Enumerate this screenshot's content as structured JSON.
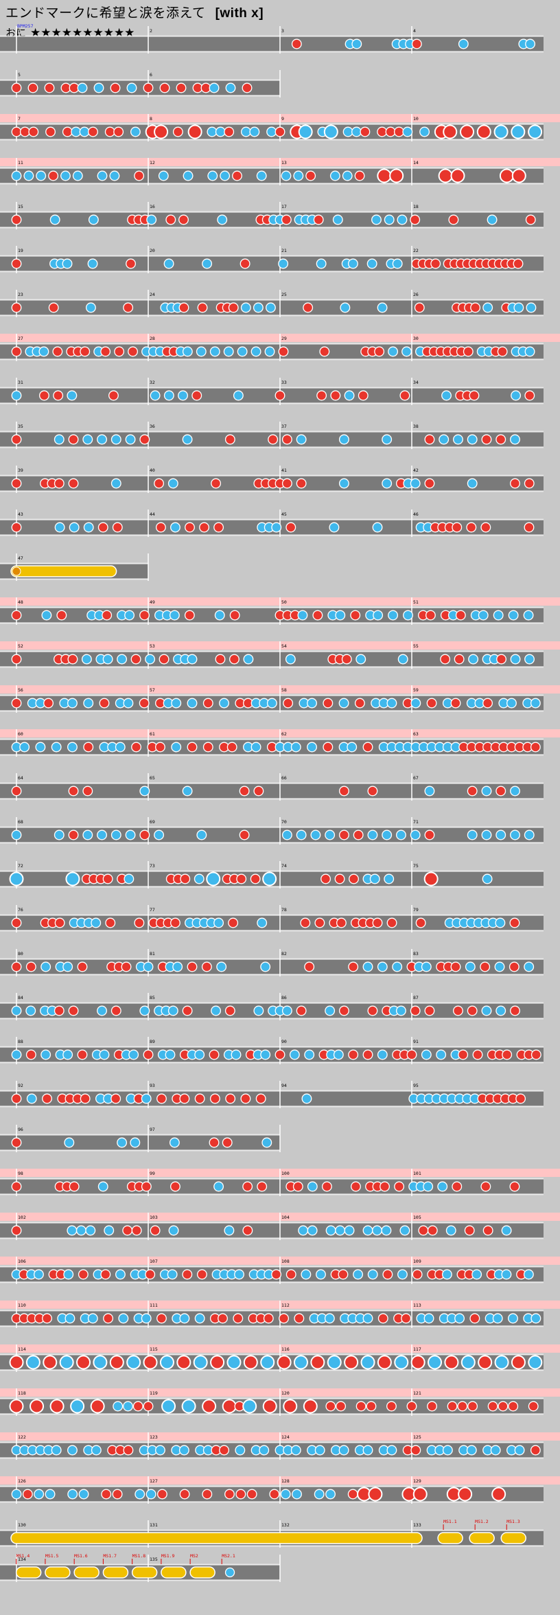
{
  "song": {
    "title": "エンドマークに希望と涙を添えて",
    "suffix": "[with x]",
    "difficulty": "おに",
    "stars": "★★★★★★★★★★",
    "star_count": 10
  },
  "bpm_label": "BPM257",
  "legend": {
    "don": "#e8352c",
    "ka": "#40b8ec",
    "roll": "#f0c000",
    "gogo_band": "#ffc4c4",
    "lane": "#7a7a7a"
  },
  "rows": [
    {
      "gogo": false,
      "bars": [
        1,
        2,
        3,
        4
      ],
      "notes": "..........................................d.......kk.....kkkd......k........kk."
    },
    {
      "gogo": false,
      "bars": [
        5,
        6
      ],
      "notes": "d.d.d.ddk.k.d.k.d.d.d.ddk.k.d..."
    },
    {
      "gogo": true,
      "bars": [
        7,
        8,
        9,
        10
      ],
      "notes": "ddd.d.dkkd.dd.k.DD.d.D.kkd.kk.kd.DK.kK.kkd.dddk.k.DD.D.D.K.K.K"
    },
    {
      "gogo": true,
      "bars": [
        11,
        12,
        13,
        14
      ],
      "notes": "kkkdkk.kk.d.k.k.kkd.k.kkd.kkd.DD...DD...DD."
    },
    {
      "gogo": false,
      "bars": [
        15,
        16,
        17,
        18
      ],
      "notes": "d.....k.....k.....dddk..d.d.....k.....ddkkd.kkkd..k.....k.k.k.d.....d.....k.....d."
    },
    {
      "gogo": false,
      "bars": [
        19,
        20,
        21,
        22
      ],
      "notes": "d.....kkk...k.....d.....k.....k.....d.....k.....k...kk..k..kk..dddd.dddddddddddd..."
    },
    {
      "gogo": false,
      "bars": [
        23,
        24,
        25,
        26
      ],
      "notes": "d.....d.....k.....d.....kkkd..d..ddd.k.k.k.....d.....k.....k.....d.....dddd.k..dkk.k."
    },
    {
      "gogo": true,
      "bars": [
        27,
        28,
        29,
        30
      ],
      "notes": "d.kkk.d.ddd.kd.d.d.kkkddkk.k.k.k.k.k.k.d.....d.....ddd.k.k.kddddddd.kkdd.kkk."
    },
    {
      "gogo": false,
      "bars": [
        31,
        32,
        33,
        34
      ],
      "notes": "k...d.d.k.....d.....k.k.k.d.....k.....d.....d.d.k.d.....d.....k.ddd.....k.d."
    },
    {
      "gogo": false,
      "bars": [
        35,
        36,
        37,
        38
      ],
      "notes": "d.....k.d.k.k.k.k.d.....k.....d.....d.d.k.....k.....k.....d.k.k.k.d.d.k..."
    },
    {
      "gogo": false,
      "bars": [
        39,
        40,
        41,
        42
      ],
      "notes": "d...ddd.d.....k.....d.k.....d.....ddddd.d.....k.....k.dkk.d.....k.....d.d."
    },
    {
      "gogo": false,
      "bars": [
        43,
        44,
        45,
        46
      ],
      "notes": "d.....k.k.k.d.d.....d.k.d.d.d.....kkk.d.....k.....k.....kkdddd.d.d.....d."
    },
    {
      "gogo": false,
      "bars": [
        47
      ],
      "roll_from": 0.0,
      "roll_to": 0.8
    },
    {
      "gogo": true,
      "bars": [
        48,
        49,
        50,
        51
      ],
      "notes": "d...k.d...kkd.kk.d.kkk.d...k.d.....dddk.d.kk.d.kk.k.k.dd.dkd.kk.k.k.k."
    },
    {
      "gogo": true,
      "bars": [
        52,
        53,
        54,
        55
      ],
      "notes": "d.....ddd.k.kk.k.d.k.d.kkk...d.d.k.....k.....ddd.k.....k.....d.d.k.kkd.k.k."
    },
    {
      "gogo": true,
      "bars": [
        56,
        57,
        58,
        59
      ],
      "notes": "d.kkd.kk.k.d.kk.d.dkk.k.d.k.ddkkk.d.kk.d.k.d.kkk.dk.d.kd.kkd.kk.kk"
    },
    {
      "gogo": true,
      "bars": [
        60,
        61,
        62,
        63
      ],
      "notes": "kk.k.k.k.d.kkk.d.dd.k.d.d.dd.kk.dkkk.k.d.kk.d.kkkkkkkkkkdddddddddd"
    },
    {
      "gogo": false,
      "bars": [
        64,
        65,
        66,
        67
      ],
      "notes": "d.......d.d.......k.....k.......d.d...........d...d.......k.....d.k.d.k..."
    },
    {
      "gogo": false,
      "bars": [
        68,
        69,
        70,
        71
      ],
      "notes": "k.....k.d.k.k.k.k.d.k.....k.....d.....k.k.k.k.d.d.k.k.k.k.d.....k.k.k.k.k."
    },
    {
      "gogo": false,
      "bars": [
        72,
        73,
        74,
        75
      ],
      "notes": "K.......K.dddd.dk.....ddd.k.K.ddd.d.K.......d.d.d.kk.k.....D.......k......."
    },
    {
      "gogo": false,
      "bars": [
        76,
        77,
        78,
        79
      ],
      "notes": "d...ddd.kkkk.d...d.dddd.kkkkk.d...k.....d.d.dd.dddd.d...d...kkkkkkkk.d..."
    },
    {
      "gogo": false,
      "bars": [
        80,
        81,
        82,
        83
      ],
      "notes": "d.d.k.kk.d...ddd.kk.dkk.d.d.k.....k.....d.....d.k.k.k.dkk.ddd.k.d.k.d.k."
    },
    {
      "gogo": false,
      "bars": [
        84,
        85,
        86,
        87
      ],
      "notes": "k.k.kkd.d...k.d...k.kkk.d...k.d...k.kkk.d...k.d...d.dkk.d.d...d.d.k.k.d..."
    },
    {
      "gogo": false,
      "bars": [
        88,
        89,
        90,
        91
      ],
      "notes": "k.d.k.kk.d.kk.dkk.d.kk.dkk.d.kk.dkk.d.k.k.dkk.d.d.k.ddd.k.k.kd.d.ddd.ddd"
    },
    {
      "gogo": false,
      "bars": [
        92,
        93,
        94,
        95
      ],
      "notes": "d.k.d.dddd.kkd.kdk.d.dd.d.d.d.d.d.....k.............kkkkkkkkkdddddd.."
    },
    {
      "gogo": false,
      "bars": [
        96,
        97
      ],
      "notes": "d.......k.......k.k.....k.....d.d.....k."
    },
    {
      "gogo": true,
      "bars": [
        98,
        99,
        100,
        101
      ],
      "notes": "d.....ddd...k...ddd...d.....k...d.d...dd.k.d...d.ddd.d.kkk.k.d...d...d..."
    },
    {
      "gogo": true,
      "bars": [
        102,
        103,
        104,
        105
      ],
      "notes": "d.....kkk.k.dd.d.k.....k.d.....kk.kkk.kkk.k.dd.k.d.d.k..."
    },
    {
      "gogo": true,
      "bars": [
        106,
        107,
        108,
        109
      ],
      "notes": "kdkk.ddk.d.kd.k.kkd.kk.d.d.kkkk.kkkd.d.k.k.dd.k.k.d.k.d.ddk.ddk.dkk.dk."
    },
    {
      "gogo": true,
      "bars": [
        110,
        111,
        112,
        113
      ],
      "notes": "ddddd.kk.kk.d.k.kk.d.kk.k.dd.d.ddd.d.d.kkk.kkkk.d.dd.kk.kkk.d.kk.k.kk"
    },
    {
      "gogo": true,
      "bars": [
        114,
        115,
        116,
        117
      ],
      "notes": "D.K.D.K.D.K.D.K.D.K.D.K.D.K.D.K.D.K.D.K.D.K.D.K.D.K.D.K.D.K.D.K"
    },
    {
      "gogo": true,
      "bars": [
        118,
        119,
        120,
        121
      ],
      "notes": "D.D.D.K.D.kkdd.K.K.D.DdK.D.D.D.dd.dd.d.d.d.ddd.ddd.d"
    },
    {
      "gogo": true,
      "bars": [
        122,
        123,
        124,
        125
      ],
      "notes": "kkkkkk.k.kk.ddd.kkk.kk.kkdd.k.kk.kkk.kk.kk.kk.kk.dd.kkk.kk.kk.kk.d"
    },
    {
      "gogo": true,
      "bars": [
        126,
        127,
        128,
        129
      ],
      "notes": "kdkk.kk.dd.kkd.d.d.ddd.dkk.kk.dDD..DD..DD..D..."
    },
    {
      "gogo": false,
      "bars": [
        130,
        131,
        132,
        133
      ],
      "roll_from": 0.0,
      "roll_to": 0.78,
      "balloons": [
        0.81,
        0.87,
        0.93
      ],
      "events": [
        "MS1.1",
        "MS1.2",
        "MS1.3"
      ]
    },
    {
      "gogo": false,
      "bars": [
        134,
        135
      ],
      "balloons": [
        0.02,
        0.13,
        0.24,
        0.35,
        0.46,
        0.57,
        0.68
      ],
      "small_notes": [
        0.81
      ],
      "events": [
        "MS1.4",
        "MS1.5",
        "MS1.6",
        "MS1.7",
        "MS1.8",
        "MS1.9",
        "MS2",
        "MS2.1"
      ]
    }
  ]
}
